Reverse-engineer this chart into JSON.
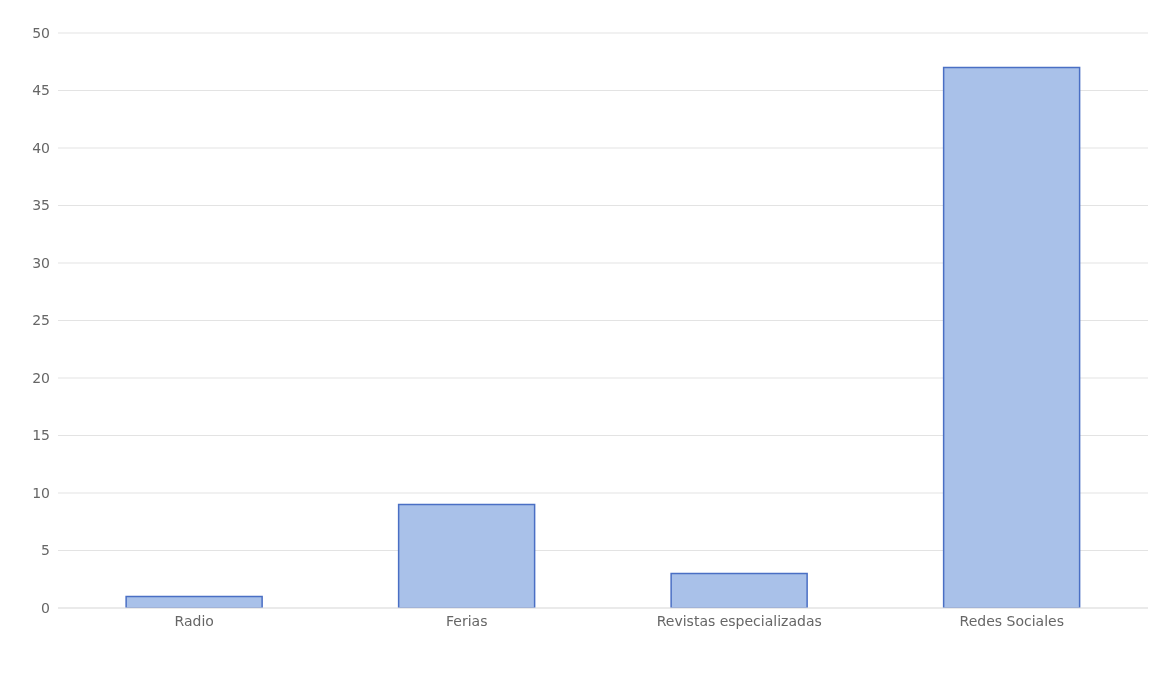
{
  "chart_data": {
    "type": "bar",
    "categories": [
      "Radio",
      "Ferias",
      "Revistas especializadas",
      "Redes Sociales"
    ],
    "values": [
      1,
      9,
      3,
      47
    ],
    "color": "#a9c1e9",
    "ylim": [
      0,
      50
    ],
    "yticks": [
      0,
      5,
      10,
      15,
      20,
      25,
      30,
      35,
      40,
      45,
      50
    ],
    "grid": "y"
  }
}
